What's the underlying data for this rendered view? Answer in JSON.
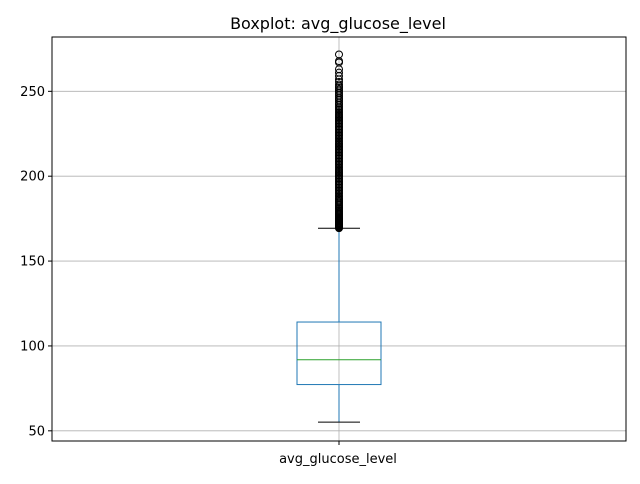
{
  "chart_data": {
    "type": "boxplot",
    "title": "Boxplot: avg_glucose_level",
    "xlabel": "",
    "ylabel": "",
    "categories": [
      "avg_glucose_level"
    ],
    "ylim": [
      44,
      282
    ],
    "yticks": [
      50,
      100,
      150,
      200,
      250
    ],
    "grid": true,
    "box": {
      "whisker_low": 55.12,
      "q1": 77.25,
      "median": 91.89,
      "q3": 114.09,
      "whisker_high": 169.36
    },
    "outliers": [
      169.4,
      169.6,
      169.8,
      170.0,
      170.2,
      170.5,
      170.8,
      171.0,
      171.3,
      171.6,
      172.0,
      172.3,
      172.6,
      173.0,
      173.5,
      174.0,
      174.5,
      175.0,
      175.6,
      176.2,
      176.8,
      177.4,
      178.0,
      178.7,
      179.4,
      180.1,
      180.8,
      181.5,
      182.2,
      183.0,
      183.8,
      184.6,
      185.4,
      186.2,
      187.0,
      187.9,
      188.8,
      189.7,
      190.6,
      191.5,
      192.4,
      193.3,
      194.2,
      195.1,
      196.0,
      196.9,
      197.8,
      198.7,
      199.6,
      200.5,
      201.4,
      202.3,
      203.2,
      204.1,
      205.0,
      205.9,
      206.8,
      207.7,
      208.6,
      209.5,
      210.4,
      211.3,
      212.2,
      213.1,
      214.0,
      214.9,
      215.8,
      216.7,
      217.6,
      218.5,
      219.4,
      220.3,
      221.2,
      222.1,
      223.0,
      223.9,
      224.8,
      225.7,
      226.6,
      227.5,
      228.4,
      229.3,
      230.2,
      231.1,
      232.0,
      232.9,
      233.8,
      234.7,
      235.6,
      236.5,
      237.4,
      238.3,
      239.2,
      240.1,
      241.0,
      242.0,
      243.0,
      244.0,
      245.0,
      246.0,
      247.0,
      248.0,
      249.0,
      250.0,
      251.0,
      252.0,
      253.0,
      254.0,
      255.5,
      257.0,
      259.0,
      261.0,
      263.0,
      267.0,
      267.8,
      271.7
    ],
    "colors": {
      "box": "#1f77b4",
      "median": "#2ca02c",
      "whisker_cap": "#000000",
      "outlier": "#000000",
      "grid": "#b0b0b0",
      "axes": "#000000"
    }
  }
}
